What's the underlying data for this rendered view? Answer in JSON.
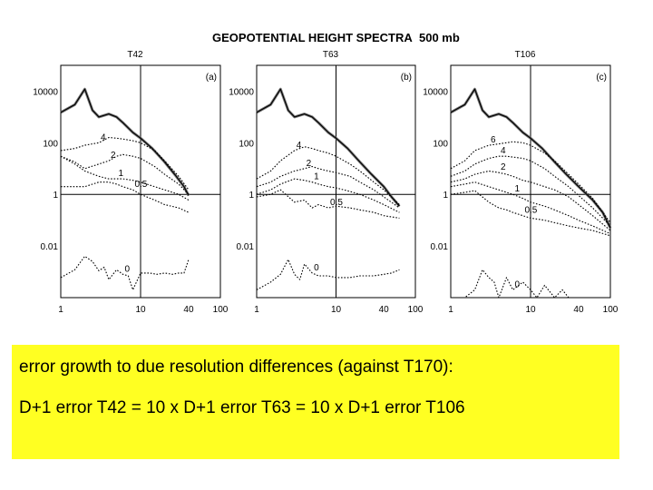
{
  "figure": {
    "title": "GEOPOTENTIAL HEIGHT SPECTRA",
    "level": "500 mb"
  },
  "chart_data": [
    {
      "type": "line",
      "subtitle": "T42",
      "panel_label": "(a)",
      "xscale": "log",
      "yscale": "log",
      "xlim": [
        1,
        100
      ],
      "ylim": [
        0.0001,
        100000
      ],
      "xticks": [
        "1",
        "10",
        "40",
        "100"
      ],
      "yticks": [
        "10000",
        "100",
        "1",
        "0.01"
      ],
      "series": [
        {
          "id": "ref",
          "x": [
            1,
            1.5,
            2,
            2.5,
            3,
            4,
            5,
            6,
            8,
            10,
            14,
            20,
            28,
            35,
            40
          ],
          "y": [
            1500,
            3000,
            12000,
            1800,
            1000,
            1300,
            1000,
            600,
            250,
            150,
            60,
            18,
            5,
            2,
            0.9
          ]
        },
        {
          "id": "d4",
          "name": "4",
          "x": [
            1,
            1.5,
            2,
            3,
            4,
            5,
            6,
            8,
            10,
            15,
            20,
            30,
            40
          ],
          "y": [
            50,
            60,
            80,
            100,
            160,
            150,
            140,
            120,
            100,
            50,
            20,
            5,
            1.5
          ]
        },
        {
          "id": "d2",
          "name": "2",
          "x": [
            1,
            1.5,
            2,
            3,
            4,
            5,
            6,
            8,
            10,
            15,
            20,
            30,
            40
          ],
          "y": [
            30,
            18,
            10,
            15,
            20,
            30,
            35,
            30,
            25,
            12,
            6,
            2.5,
            1
          ]
        },
        {
          "id": "d1",
          "name": "1",
          "x": [
            1,
            1.5,
            2,
            3,
            4,
            5,
            6,
            8,
            10,
            15,
            20,
            30,
            40
          ],
          "y": [
            30,
            15,
            8,
            5,
            4,
            4,
            4,
            3.5,
            3,
            2,
            1.5,
            1,
            0.6
          ]
        },
        {
          "id": "d05",
          "name": "0.5",
          "x": [
            1,
            2,
            3,
            4,
            5,
            6,
            8,
            10,
            15,
            20,
            30,
            40
          ],
          "y": [
            2,
            2,
            3,
            3,
            2.5,
            2,
            1.5,
            1,
            0.6,
            0.4,
            0.3,
            0.2
          ]
        },
        {
          "id": "d0",
          "name": "0",
          "x": [
            1,
            1.5,
            2,
            2.5,
            3,
            3.5,
            4,
            5,
            6,
            7,
            8,
            10,
            13,
            16,
            20,
            25,
            30,
            35,
            40
          ],
          "y": [
            0.0006,
            0.0012,
            0.004,
            0.0025,
            0.0011,
            0.0015,
            0.0005,
            0.0012,
            0.0008,
            0.0007,
            0.0002,
            0.0009,
            0.0009,
            0.0008,
            0.0009,
            0.0008,
            0.0009,
            0.0009,
            0.003
          ]
        }
      ]
    },
    {
      "type": "line",
      "subtitle": "T63",
      "panel_label": "(b)",
      "xscale": "log",
      "yscale": "log",
      "xlim": [
        1,
        100
      ],
      "ylim": [
        0.0001,
        100000
      ],
      "xticks": [
        "1",
        "10",
        "40",
        "100"
      ],
      "yticks": [
        "10000",
        "100",
        "1",
        "0.01"
      ],
      "series": [
        {
          "id": "ref",
          "x": [
            1,
            1.5,
            2,
            2.5,
            3,
            4,
            5,
            6,
            8,
            10,
            14,
            20,
            28,
            40,
            50,
            63
          ],
          "y": [
            1500,
            3000,
            12000,
            1800,
            1000,
            1300,
            1000,
            600,
            250,
            150,
            60,
            18,
            6,
            2,
            0.8,
            0.35
          ]
        },
        {
          "id": "d4",
          "name": "4",
          "x": [
            1,
            1.5,
            2,
            3,
            4,
            5,
            6,
            8,
            10,
            15,
            20,
            30,
            40,
            63
          ],
          "y": [
            4,
            8,
            20,
            50,
            70,
            60,
            50,
            40,
            30,
            15,
            8,
            3,
            1.5,
            0.4
          ]
        },
        {
          "id": "d2",
          "name": "2",
          "x": [
            1,
            1.5,
            2,
            3,
            4,
            5,
            6,
            8,
            10,
            15,
            20,
            30,
            40,
            63
          ],
          "y": [
            2,
            3,
            5,
            8,
            10,
            12,
            10,
            8,
            7,
            5,
            3,
            1.5,
            0.8,
            0.3
          ]
        },
        {
          "id": "d1",
          "name": "1",
          "x": [
            1,
            1.5,
            2,
            3,
            4,
            5,
            6,
            8,
            10,
            15,
            20,
            30,
            40,
            63
          ],
          "y": [
            1,
            1.5,
            2.5,
            4,
            3.5,
            3,
            2.5,
            2,
            1.8,
            1.3,
            1,
            0.6,
            0.4,
            0.2
          ]
        },
        {
          "id": "d05",
          "name": "0.5",
          "x": [
            1,
            1.5,
            2,
            3,
            4,
            5,
            6,
            8,
            10,
            15,
            20,
            30,
            40,
            63
          ],
          "y": [
            0.8,
            1,
            1.5,
            0.5,
            0.6,
            0.3,
            0.4,
            0.3,
            0.35,
            0.3,
            0.25,
            0.2,
            0.15,
            0.12
          ]
        },
        {
          "id": "d0",
          "name": "0",
          "x": [
            1,
            1.5,
            2,
            2.5,
            3,
            3.5,
            4,
            5,
            6,
            8,
            10,
            15,
            20,
            30,
            40,
            50,
            63
          ],
          "y": [
            0.0002,
            0.0004,
            0.0008,
            0.003,
            0.0008,
            0.0005,
            0.002,
            0.0009,
            0.0007,
            0.0007,
            0.0006,
            0.0006,
            0.0007,
            0.0007,
            0.0008,
            0.0009,
            0.0012
          ]
        }
      ]
    },
    {
      "type": "line",
      "subtitle": "T106",
      "panel_label": "(c)",
      "xscale": "log",
      "yscale": "log",
      "xlim": [
        1,
        100
      ],
      "ylim": [
        0.0001,
        100000
      ],
      "xticks": [
        "1",
        "10",
        "40",
        "100"
      ],
      "yticks": [
        "10000",
        "100",
        "1",
        "0.01"
      ],
      "series": [
        {
          "id": "ref",
          "x": [
            1,
            1.5,
            2,
            2.5,
            3,
            4,
            5,
            6,
            8,
            10,
            14,
            20,
            28,
            40,
            60,
            80,
            100
          ],
          "y": [
            1500,
            3000,
            12000,
            1800,
            1000,
            1300,
            1000,
            600,
            250,
            150,
            60,
            18,
            6,
            2,
            0.6,
            0.2,
            0.05
          ]
        },
        {
          "id": "d6",
          "name": "6",
          "x": [
            1,
            1.5,
            2,
            3,
            4,
            5,
            6,
            8,
            10,
            15,
            20,
            30,
            40,
            60,
            100
          ],
          "y": [
            10,
            20,
            50,
            80,
            90,
            100,
            110,
            100,
            80,
            40,
            20,
            6,
            2.5,
            0.7,
            0.08
          ]
        },
        {
          "id": "d4",
          "name": "4",
          "x": [
            1,
            1.5,
            2,
            3,
            4,
            5,
            6,
            8,
            10,
            15,
            20,
            30,
            40,
            60,
            100
          ],
          "y": [
            5,
            8,
            15,
            25,
            30,
            30,
            28,
            25,
            20,
            10,
            5,
            2,
            0.9,
            0.3,
            0.06
          ]
        },
        {
          "id": "d2",
          "name": "2",
          "x": [
            1,
            1.5,
            2,
            3,
            4,
            5,
            6,
            8,
            10,
            15,
            20,
            30,
            40,
            60,
            100
          ],
          "y": [
            3,
            4,
            6,
            8,
            7,
            6,
            5,
            3.5,
            3,
            2,
            1.5,
            0.8,
            0.4,
            0.15,
            0.04
          ]
        },
        {
          "id": "d1",
          "name": "1",
          "x": [
            1,
            1.5,
            2,
            3,
            4,
            5,
            6,
            8,
            10,
            15,
            20,
            30,
            40,
            60,
            100
          ],
          "y": [
            2,
            2.5,
            3,
            2,
            1.5,
            1.2,
            1,
            0.7,
            0.5,
            0.35,
            0.25,
            0.15,
            0.1,
            0.06,
            0.03
          ]
        },
        {
          "id": "d05",
          "name": "0.5",
          "x": [
            1,
            1.5,
            2,
            3,
            4,
            5,
            6,
            8,
            10,
            15,
            20,
            30,
            40,
            60,
            100
          ],
          "y": [
            1,
            1.2,
            1.4,
            0.5,
            0.3,
            0.25,
            0.2,
            0.15,
            0.12,
            0.1,
            0.08,
            0.06,
            0.05,
            0.04,
            0.025
          ]
        },
        {
          "id": "d0",
          "name": "0",
          "x": [
            1,
            1.5,
            2,
            2.5,
            3,
            3.5,
            4,
            5,
            6,
            8,
            10,
            12,
            15,
            20,
            25,
            30,
            40,
            60,
            100
          ],
          "y": [
            0.0001,
            0.0001,
            0.0002,
            0.0012,
            0.0006,
            0.0004,
            0.0001,
            0.0006,
            0.0002,
            0.0004,
            0.0002,
            0.0001,
            0.0003,
            0.0001,
            0.0002,
            0.0001,
            0.0001,
            0.0001,
            0.0001
          ]
        }
      ]
    }
  ],
  "caption": {
    "line1": "error growth to due resolution differences (against T170):",
    "line2": "D+1 error T42 = 10 x D+1 error T63 = 10 x D+1 error T106"
  }
}
